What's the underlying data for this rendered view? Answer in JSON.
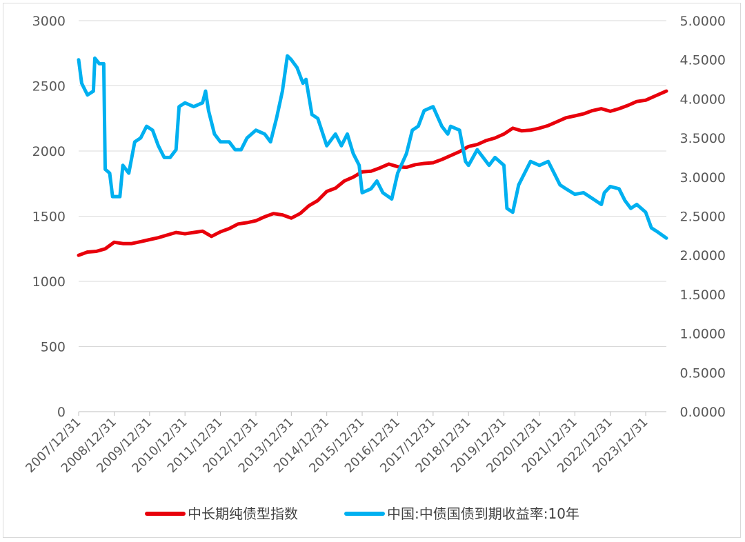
{
  "chart_data": {
    "type": "line",
    "title": "",
    "xlabel": "",
    "ylabel": "",
    "colors": {
      "index": "#e8000b",
      "yield": "#00b0f0",
      "grid": "#d9d9d9",
      "axis": "#bfbfbf",
      "text": "#595959"
    },
    "legend_position": "bottom",
    "grid": true,
    "ylim_left": [
      0,
      3000
    ],
    "ylim_right": [
      0.0,
      5.0
    ],
    "yticks_left": [
      "0",
      "500",
      "1000",
      "1500",
      "2000",
      "2500",
      "3000"
    ],
    "yticks_right": [
      "0.0000",
      "0.5000",
      "1.0000",
      "1.5000",
      "2.0000",
      "2.5000",
      "3.0000",
      "3.5000",
      "4.0000",
      "4.5000",
      "5.0000"
    ],
    "xlim": [
      "2007/12/31",
      "2024/07/31"
    ],
    "xticks": [
      "2007/12/31",
      "2008/12/31",
      "2009/12/31",
      "2010/12/31",
      "2011/12/31",
      "2012/12/31",
      "2013/12/31",
      "2014/12/31",
      "2015/12/31",
      "2016/12/31",
      "2017/12/31",
      "2018/12/31",
      "2019/12/31",
      "2020/12/31",
      "2021/12/31",
      "2022/12/31",
      "2023/12/31"
    ],
    "series": [
      {
        "name": "中长期纯债型指数",
        "axis": "left",
        "points": [
          [
            "2007/12/31",
            1200
          ],
          [
            "2008/03/31",
            1225
          ],
          [
            "2008/06/30",
            1230
          ],
          [
            "2008/09/30",
            1250
          ],
          [
            "2008/12/31",
            1300
          ],
          [
            "2009/03/31",
            1290
          ],
          [
            "2009/06/30",
            1290
          ],
          [
            "2009/09/30",
            1305
          ],
          [
            "2009/12/31",
            1320
          ],
          [
            "2010/03/31",
            1335
          ],
          [
            "2010/06/30",
            1355
          ],
          [
            "2010/09/30",
            1375
          ],
          [
            "2010/12/31",
            1365
          ],
          [
            "2011/03/31",
            1375
          ],
          [
            "2011/06/30",
            1385
          ],
          [
            "2011/09/30",
            1345
          ],
          [
            "2011/12/31",
            1380
          ],
          [
            "2012/03/31",
            1405
          ],
          [
            "2012/06/30",
            1440
          ],
          [
            "2012/09/30",
            1450
          ],
          [
            "2012/12/31",
            1465
          ],
          [
            "2013/03/31",
            1495
          ],
          [
            "2013/06/30",
            1520
          ],
          [
            "2013/09/30",
            1510
          ],
          [
            "2013/12/31",
            1485
          ],
          [
            "2014/03/31",
            1520
          ],
          [
            "2014/06/30",
            1580
          ],
          [
            "2014/09/30",
            1620
          ],
          [
            "2014/12/31",
            1690
          ],
          [
            "2015/03/31",
            1715
          ],
          [
            "2015/06/30",
            1770
          ],
          [
            "2015/09/30",
            1800
          ],
          [
            "2015/12/31",
            1840
          ],
          [
            "2016/03/31",
            1845
          ],
          [
            "2016/06/30",
            1870
          ],
          [
            "2016/09/30",
            1900
          ],
          [
            "2016/12/31",
            1880
          ],
          [
            "2017/03/31",
            1875
          ],
          [
            "2017/06/30",
            1895
          ],
          [
            "2017/09/30",
            1905
          ],
          [
            "2017/12/31",
            1910
          ],
          [
            "2018/03/31",
            1935
          ],
          [
            "2018/06/30",
            1965
          ],
          [
            "2018/09/30",
            1995
          ],
          [
            "2018/12/31",
            2035
          ],
          [
            "2019/03/31",
            2050
          ],
          [
            "2019/06/30",
            2080
          ],
          [
            "2019/09/30",
            2100
          ],
          [
            "2019/12/31",
            2130
          ],
          [
            "2020/03/31",
            2175
          ],
          [
            "2020/06/30",
            2155
          ],
          [
            "2020/09/30",
            2160
          ],
          [
            "2020/12/31",
            2175
          ],
          [
            "2021/03/31",
            2195
          ],
          [
            "2021/06/30",
            2225
          ],
          [
            "2021/09/30",
            2255
          ],
          [
            "2021/12/31",
            2270
          ],
          [
            "2022/03/31",
            2285
          ],
          [
            "2022/06/30",
            2310
          ],
          [
            "2022/09/30",
            2325
          ],
          [
            "2022/12/31",
            2305
          ],
          [
            "2023/03/31",
            2325
          ],
          [
            "2023/06/30",
            2350
          ],
          [
            "2023/09/30",
            2380
          ],
          [
            "2023/12/31",
            2390
          ],
          [
            "2024/03/31",
            2420
          ],
          [
            "2024/07/31",
            2460
          ]
        ]
      },
      {
        "name": "中国:中债国债到期收益率:10年",
        "axis": "right",
        "points": [
          [
            "2007/12/31",
            4.5
          ],
          [
            "2008/01/31",
            4.2
          ],
          [
            "2008/03/31",
            4.05
          ],
          [
            "2008/05/31",
            4.1
          ],
          [
            "2008/06/15",
            4.52
          ],
          [
            "2008/07/31",
            4.45
          ],
          [
            "2008/09/15",
            4.45
          ],
          [
            "2008/09/30",
            3.1
          ],
          [
            "2008/11/15",
            3.05
          ],
          [
            "2008/12/15",
            2.75
          ],
          [
            "2009/02/28",
            2.75
          ],
          [
            "2009/03/31",
            3.15
          ],
          [
            "2009/05/31",
            3.05
          ],
          [
            "2009/07/31",
            3.45
          ],
          [
            "2009/09/30",
            3.5
          ],
          [
            "2009/11/30",
            3.65
          ],
          [
            "2010/01/31",
            3.6
          ],
          [
            "2010/03/31",
            3.4
          ],
          [
            "2010/05/31",
            3.25
          ],
          [
            "2010/07/31",
            3.25
          ],
          [
            "2010/09/30",
            3.35
          ],
          [
            "2010/10/31",
            3.9
          ],
          [
            "2010/12/31",
            3.95
          ],
          [
            "2011/03/31",
            3.9
          ],
          [
            "2011/06/30",
            3.95
          ],
          [
            "2011/07/31",
            4.1
          ],
          [
            "2011/08/31",
            3.85
          ],
          [
            "2011/10/31",
            3.55
          ],
          [
            "2011/12/31",
            3.45
          ],
          [
            "2012/03/31",
            3.45
          ],
          [
            "2012/05/31",
            3.35
          ],
          [
            "2012/07/31",
            3.35
          ],
          [
            "2012/09/30",
            3.5
          ],
          [
            "2012/12/31",
            3.6
          ],
          [
            "2013/03/31",
            3.55
          ],
          [
            "2013/05/31",
            3.45
          ],
          [
            "2013/07/31",
            3.75
          ],
          [
            "2013/09/30",
            4.1
          ],
          [
            "2013/11/20",
            4.55
          ],
          [
            "2013/12/31",
            4.5
          ],
          [
            "2014/02/28",
            4.4
          ],
          [
            "2014/04/30",
            4.2
          ],
          [
            "2014/05/31",
            4.25
          ],
          [
            "2014/07/31",
            3.8
          ],
          [
            "2014/09/30",
            3.75
          ],
          [
            "2014/12/31",
            3.4
          ],
          [
            "2015/03/31",
            3.55
          ],
          [
            "2015/05/31",
            3.4
          ],
          [
            "2015/07/31",
            3.55
          ],
          [
            "2015/09/30",
            3.3
          ],
          [
            "2015/11/30",
            3.15
          ],
          [
            "2015/12/31",
            2.8
          ],
          [
            "2016/03/31",
            2.85
          ],
          [
            "2016/05/31",
            2.95
          ],
          [
            "2016/07/31",
            2.8
          ],
          [
            "2016/10/31",
            2.72
          ],
          [
            "2016/12/31",
            3.05
          ],
          [
            "2017/03/31",
            3.3
          ],
          [
            "2017/05/31",
            3.6
          ],
          [
            "2017/07/31",
            3.65
          ],
          [
            "2017/09/30",
            3.85
          ],
          [
            "2017/12/31",
            3.9
          ],
          [
            "2018/03/31",
            3.65
          ],
          [
            "2018/05/31",
            3.55
          ],
          [
            "2018/06/30",
            3.65
          ],
          [
            "2018/09/30",
            3.6
          ],
          [
            "2018/11/30",
            3.2
          ],
          [
            "2018/12/31",
            3.15
          ],
          [
            "2019/03/31",
            3.35
          ],
          [
            "2019/05/31",
            3.25
          ],
          [
            "2019/07/31",
            3.15
          ],
          [
            "2019/09/30",
            3.25
          ],
          [
            "2019/12/31",
            3.15
          ],
          [
            "2020/01/31",
            2.6
          ],
          [
            "2020/03/31",
            2.55
          ],
          [
            "2020/05/31",
            2.9
          ],
          [
            "2020/07/31",
            3.05
          ],
          [
            "2020/09/30",
            3.2
          ],
          [
            "2020/12/31",
            3.15
          ],
          [
            "2021/03/31",
            3.2
          ],
          [
            "2021/05/31",
            3.05
          ],
          [
            "2021/07/31",
            2.9
          ],
          [
            "2021/09/30",
            2.85
          ],
          [
            "2021/12/31",
            2.78
          ],
          [
            "2022/03/31",
            2.8
          ],
          [
            "2022/05/31",
            2.75
          ],
          [
            "2022/07/31",
            2.7
          ],
          [
            "2022/09/30",
            2.65
          ],
          [
            "2022/10/31",
            2.8
          ],
          [
            "2022/12/31",
            2.88
          ],
          [
            "2023/03/31",
            2.85
          ],
          [
            "2023/05/31",
            2.7
          ],
          [
            "2023/07/31",
            2.6
          ],
          [
            "2023/09/30",
            2.65
          ],
          [
            "2023/12/31",
            2.55
          ],
          [
            "2024/02/28",
            2.35
          ],
          [
            "2024/04/30",
            2.3
          ],
          [
            "2024/07/31",
            2.22
          ]
        ]
      }
    ]
  }
}
